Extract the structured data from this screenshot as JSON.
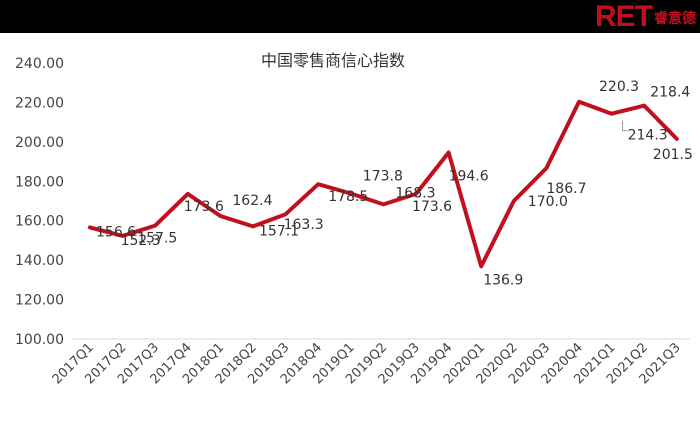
{
  "header": {
    "logo_ret": "RET",
    "logo_cn": "睿意德"
  },
  "colors": {
    "line": "#c0101e",
    "topbar": "#000000",
    "text": "#444444",
    "leader": "#999999"
  },
  "chart_data": {
    "type": "line",
    "title": "中国零售商信心指数",
    "xlabel": "",
    "ylabel": "",
    "ylim": [
      100,
      240
    ],
    "grid": false,
    "y_ticks": [
      "100.00",
      "120.00",
      "140.00",
      "160.00",
      "180.00",
      "200.00",
      "220.00",
      "240.00"
    ],
    "categories": [
      "2017Q1",
      "2017Q2",
      "2017Q3",
      "2017Q4",
      "2018Q1",
      "2018Q2",
      "2018Q3",
      "2018Q4",
      "2019Q1",
      "2019Q2",
      "2019Q3",
      "2019Q4",
      "2020Q1",
      "2020Q2",
      "2020Q3",
      "2020Q4",
      "2021Q1",
      "2021Q2",
      "2021Q3"
    ],
    "series": [
      {
        "values": [
          156.6,
          152.3,
          157.5,
          173.6,
          162.4,
          157.1,
          163.3,
          178.5,
          173.8,
          168.3,
          173.6,
          194.6,
          136.9,
          170.0,
          186.7,
          220.3,
          214.3,
          218.4,
          201.5
        ],
        "labels": [
          "156.6",
          "152.3",
          "157.5",
          "173.6",
          "162.4",
          "157.1",
          "163.3",
          "178.5",
          "173.8",
          "168.3",
          "173.6",
          "194.6",
          "136.9",
          "170.0",
          "186.7",
          "220.3",
          "214.3",
          "218.4",
          "201.5"
        ]
      }
    ]
  }
}
